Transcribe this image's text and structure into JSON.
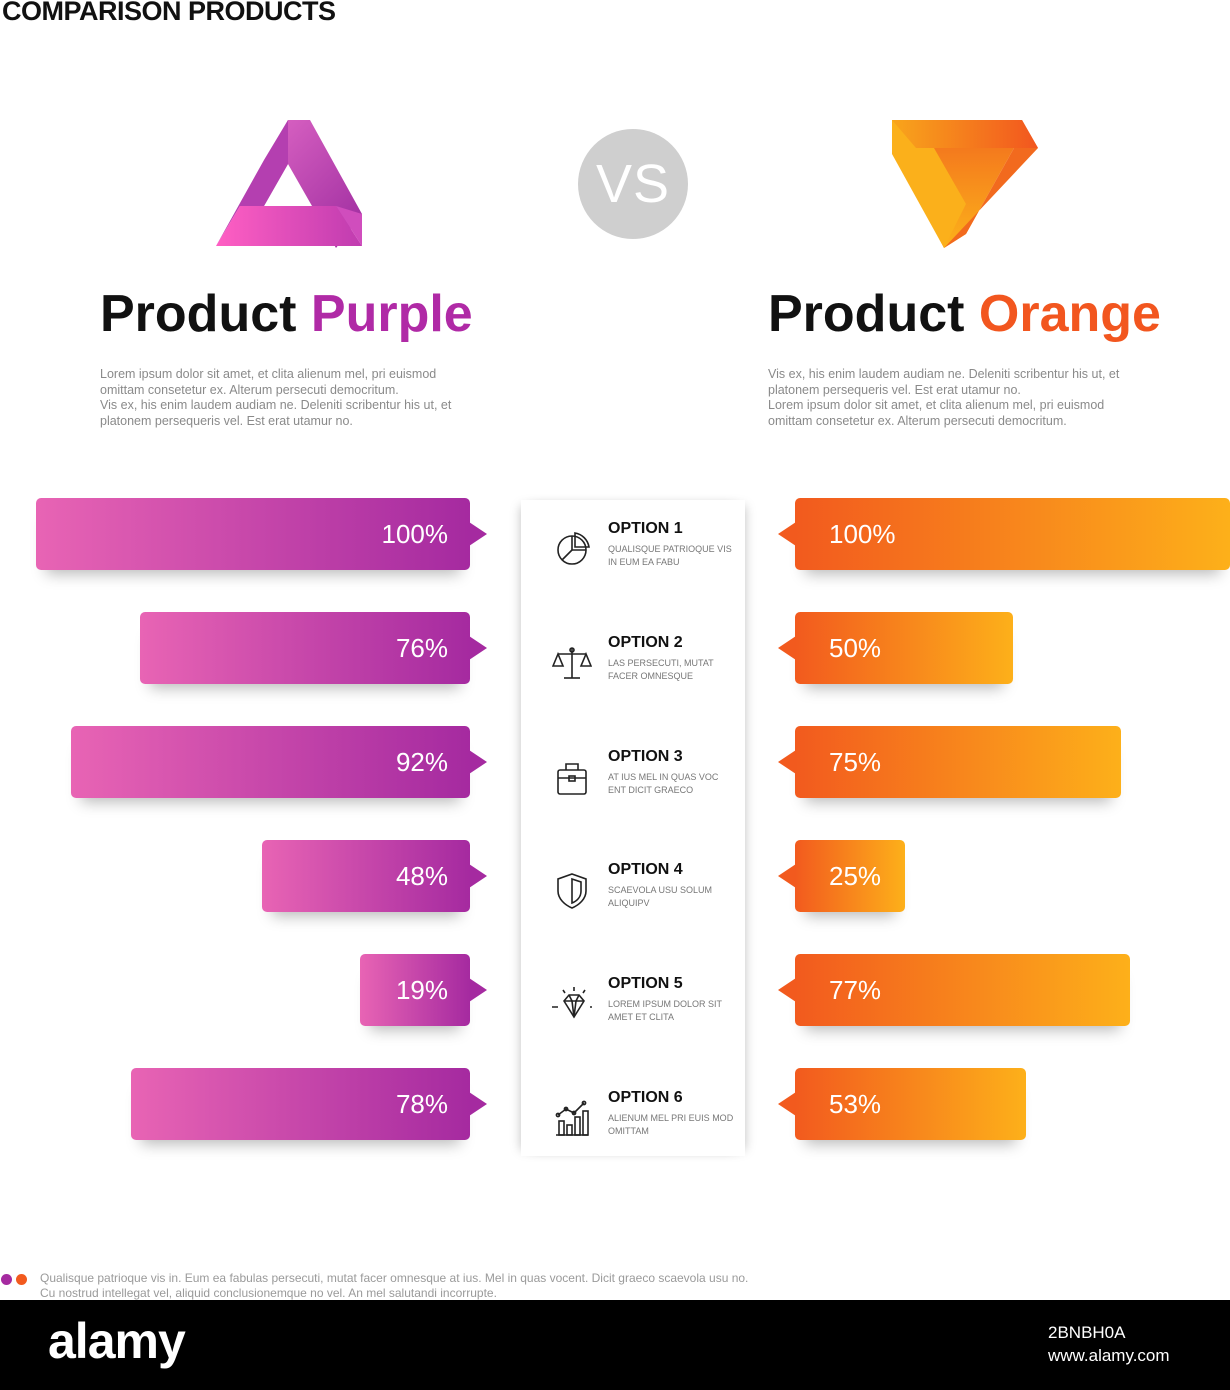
{
  "title": "COMPARISON PRODUCTS",
  "vs_label": "VS",
  "colors": {
    "purple": "#a52aa0",
    "orange": "#f25a1e",
    "vs_grey": "#cfcfcf"
  },
  "products": [
    {
      "prefix": "Product",
      "name": "Purple",
      "logo": "purple-triangle-logo",
      "description": [
        "Lorem ipsum dolor sit  amet, et clita alienum mel, pri euismod",
        "omittam  consetetur ex. Alterum persecuti democritum.",
        "Vis ex, his enim laudem audiam ne. Deleniti scribentur his ut, et",
        "platonem persequeris vel. Est erat utamur no."
      ]
    },
    {
      "prefix": "Product",
      "name": "Orange",
      "logo": "orange-triangle-logo",
      "description": [
        "Vis ex, his enim laudem audiam ne. Deleniti scribentur his ut, et",
        "platonem persequeris vel. Est erat utamur no.",
        "Lorem ipsum dolor sit  amet, et clita alienum mel, pri euismod",
        "omittam  consetetur ex. Alterum persecuti democritum."
      ]
    }
  ],
  "options": [
    {
      "title": "OPTION 1",
      "subtitle": "QUALISQUE PATRIOQUE VIS IN EUM EA FABU",
      "icon": "pie-chart-icon"
    },
    {
      "title": "OPTION 2",
      "subtitle": "LAS PERSECUTI, MUTAT FACER OMNESQUE",
      "icon": "scales-icon"
    },
    {
      "title": "OPTION 3",
      "subtitle": "AT IUS MEL IN QUAS VOC ENT DICIT GRAECO",
      "icon": "briefcase-icon"
    },
    {
      "title": "OPTION 4",
      "subtitle": "SCAEVOLA USU SOLUM ALIQUIPV",
      "icon": "shield-icon"
    },
    {
      "title": "OPTION 5",
      "subtitle": "LOREM IPSUM DOLOR SIT  AMET ET CLITA",
      "icon": "diamond-icon"
    },
    {
      "title": "OPTION 6",
      "subtitle": "ALIENUM MEL PRI EUIS MOD OMITTAM",
      "icon": "growth-chart-icon"
    }
  ],
  "chart_data": {
    "type": "bar",
    "categories": [
      "OPTION 1",
      "OPTION 2",
      "OPTION 3",
      "OPTION 4",
      "OPTION 5",
      "OPTION 6"
    ],
    "series": [
      {
        "name": "Product Purple",
        "values": [
          100,
          76,
          92,
          48,
          19,
          78
        ],
        "labels": [
          "100%",
          "76%",
          "92%",
          "48%",
          "19%",
          "78%"
        ]
      },
      {
        "name": "Product Orange",
        "values": [
          100,
          50,
          75,
          25,
          77,
          53
        ],
        "labels": [
          "100%",
          "50%",
          "75%",
          "25%",
          "77%",
          "53%"
        ]
      }
    ],
    "xlim": [
      0,
      100
    ],
    "grid": false
  },
  "footer": {
    "text": "Qualisque patrioque vis in. Eum ea fabulas persecuti, mutat facer omnesque at ius. Mel in quas vocent. Dicit graeco scaevola usu no. Cu nostrud intellegat vel, aliquid conclusionemque no vel. An mel salutandi incorrupte."
  },
  "watermark": {
    "logo": "alamy",
    "image_id": "2BNBH0A",
    "url": "www.alamy.com"
  }
}
